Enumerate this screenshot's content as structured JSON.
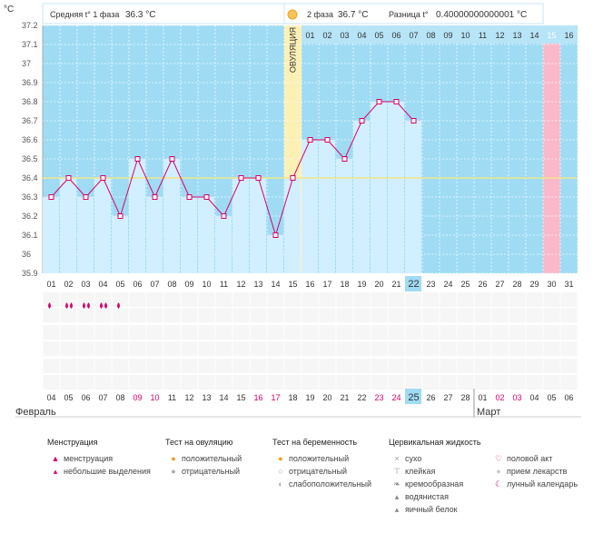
{
  "header": {
    "unit": "°C",
    "phase1_label": "Средняя t° 1 фаза",
    "phase1_value": "36.3 °C",
    "phase2_label": "2 фаза",
    "phase2_value": "36.7 °C",
    "diff_label": "Разница t°",
    "diff_value": "0.40000000000001 °C"
  },
  "ovulation_label": "ОВУЛЯЦИЯ",
  "chart_data": {
    "type": "line",
    "ylim": [
      35.9,
      37.2
    ],
    "y_ticks": [
      "35.9",
      "36",
      "36.1",
      "36.2",
      "36.3",
      "36.4",
      "36.5",
      "36.6",
      "36.7",
      "36.8",
      "36.9",
      "37",
      "37.1",
      "37.2"
    ],
    "cycle_days": [
      "01",
      "02",
      "03",
      "04",
      "05",
      "06",
      "07",
      "08",
      "09",
      "10",
      "11",
      "12",
      "13",
      "14",
      "15",
      "16",
      "17",
      "18",
      "19",
      "20",
      "21",
      "22",
      "23",
      "24",
      "25",
      "26",
      "27",
      "28",
      "29",
      "30",
      "31"
    ],
    "values": [
      36.3,
      36.4,
      36.3,
      36.4,
      36.2,
      36.5,
      36.3,
      36.5,
      36.3,
      36.3,
      36.2,
      36.4,
      36.4,
      36.1,
      36.4,
      36.6,
      36.6,
      36.5,
      36.7,
      36.8,
      36.8,
      36.7,
      null,
      null,
      null,
      null,
      null,
      null,
      null,
      null,
      null
    ],
    "coverline": 36.4,
    "ovulation_day": 15,
    "current_day": 22,
    "marked_day": 30,
    "phase2_days": [
      "01",
      "02",
      "03",
      "04",
      "05",
      "06",
      "07",
      "08",
      "09",
      "10",
      "11",
      "12",
      "13",
      "14",
      "15",
      "16"
    ],
    "calendar_dates": [
      "04",
      "05",
      "06",
      "07",
      "08",
      "09",
      "10",
      "11",
      "12",
      "13",
      "14",
      "15",
      "16",
      "17",
      "18",
      "19",
      "20",
      "21",
      "22",
      "23",
      "24",
      "25",
      "26",
      "27",
      "28",
      "01",
      "02",
      "03",
      "04",
      "05",
      "06"
    ],
    "weekend_indices": [
      5,
      6,
      12,
      13,
      19,
      20,
      26,
      27
    ],
    "today_index": 21,
    "months": [
      "Февраль",
      "Март"
    ]
  },
  "colors": {
    "sky": "#9fdcf4",
    "bar": "#d2efff",
    "line": "#d8006a",
    "ovulation": "#fdf0b5",
    "marked": "#f9b9ca",
    "today": "#9fdcf4",
    "weekend_text": "#d8006a"
  },
  "legend": {
    "groups": [
      {
        "title": "Менструация",
        "items": [
          {
            "icon": "drop-large-icon",
            "label": "менструация"
          },
          {
            "icon": "drop-small-icon",
            "label": "небольшие выделения"
          }
        ]
      },
      {
        "title": "Тест на овуляцию",
        "items": [
          {
            "icon": "test-positive-icon",
            "label": "положительный"
          },
          {
            "icon": "test-negative-icon",
            "label": "отрицательный"
          }
        ]
      },
      {
        "title": "Тест на беременность",
        "items": [
          {
            "icon": "preg-positive-icon",
            "label": "положительный"
          },
          {
            "icon": "preg-negative-icon",
            "label": "отрицательный"
          },
          {
            "icon": "preg-weak-icon",
            "label": "слабоположительный"
          }
        ]
      },
      {
        "title": "Цервикальная жидкость",
        "items": [
          {
            "icon": "dry-icon",
            "label": "сухо"
          },
          {
            "icon": "sticky-icon",
            "label": "клейкая"
          },
          {
            "icon": "creamy-icon",
            "label": "кремообразная"
          },
          {
            "icon": "watery-icon",
            "label": "водянистая"
          },
          {
            "icon": "eggwhite-icon",
            "label": "яичный белок"
          }
        ]
      },
      {
        "title": "",
        "items": [
          {
            "icon": "heart-icon",
            "label": "половой акт"
          },
          {
            "icon": "pill-icon",
            "label": "прием лекарств"
          },
          {
            "icon": "moon-icon",
            "label": "лунный календарь"
          }
        ]
      }
    ]
  }
}
